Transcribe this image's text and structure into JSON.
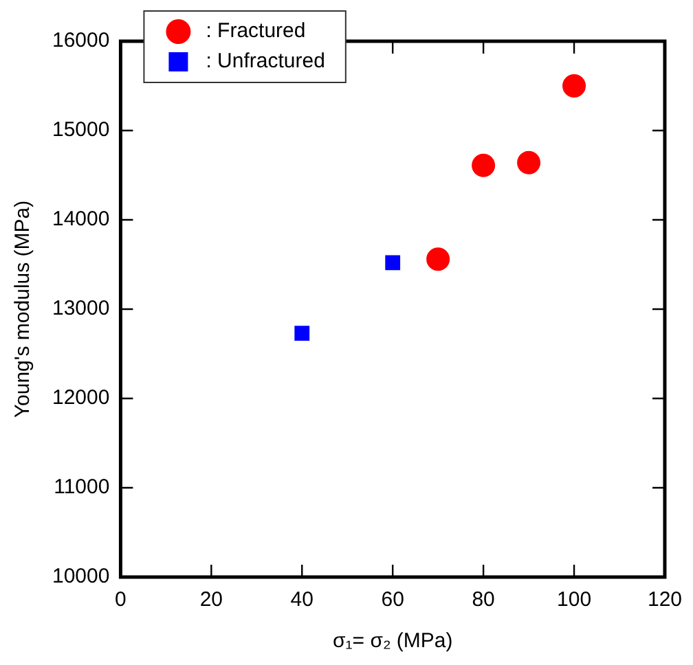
{
  "chart_data": {
    "type": "scatter",
    "xlabel": "σ₁= σ₂ (MPa)",
    "ylabel": "Young's modulus (MPa)",
    "xlim": [
      0,
      120
    ],
    "xticks": [
      0,
      20,
      40,
      60,
      80,
      100,
      120
    ],
    "ylim": [
      10000,
      16000
    ],
    "yticks": [
      10000,
      11000,
      12000,
      13000,
      14000,
      15000,
      16000
    ],
    "grid": false,
    "legend": "top left",
    "series": [
      {
        "name": ": Fractured",
        "color": "#ff0000",
        "marker": "circle",
        "x": [
          70,
          80,
          90,
          100
        ],
        "values": [
          13560,
          14610,
          14640,
          15500
        ]
      },
      {
        "name": ": Unfractured",
        "color": "#0000ff",
        "marker": "square",
        "x": [
          40,
          60
        ],
        "values": [
          12730,
          13520
        ]
      }
    ]
  }
}
